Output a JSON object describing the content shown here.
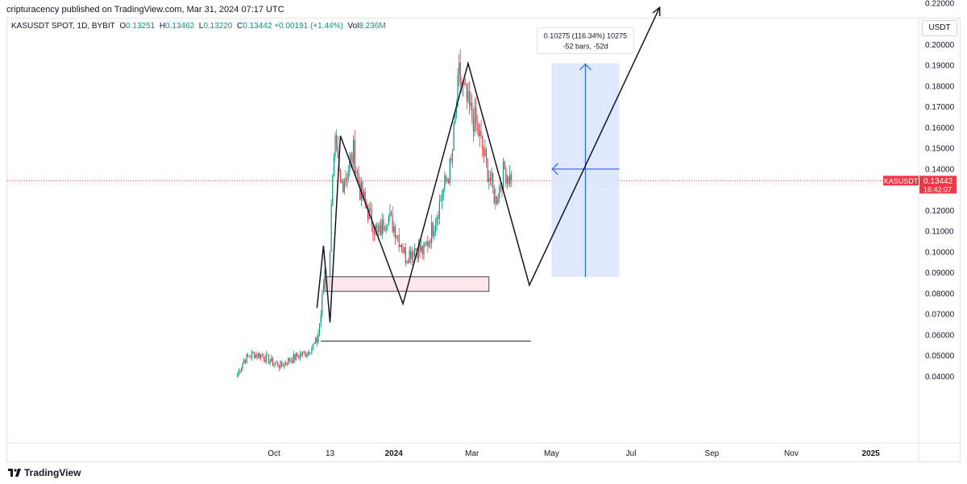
{
  "header": {
    "published_line": "cripturacency published on TradingView.com, Mar 31, 2024 07:17 UTC"
  },
  "legend": {
    "symbol": "KASUSDT SPOT, 1D, BYBIT",
    "open_label": "O",
    "open": "0.13251",
    "high_label": "H",
    "high": "0.13462",
    "low_label": "L",
    "low": "0.13220",
    "close_label": "C",
    "close": "0.13442",
    "change": "+0.00191 (+1.44%)",
    "vol_label": "Vol",
    "vol": "8.236M"
  },
  "currency_button": "USDT",
  "price_tag": {
    "symbol": "KASUSDT",
    "price": "0.13442",
    "countdown": "16:42:07"
  },
  "measure_label": {
    "line1": "0.10275 (116.34%) 10275",
    "line2": "-52 bars, -52d"
  },
  "footer": {
    "brand": "TradingView"
  },
  "colors": {
    "up": "#089981",
    "down": "#f23645",
    "zone_fill": "#fce4e6",
    "zone_border": "#131722",
    "measure_fill": "#dbe5fc",
    "measure_line": "#2962ff",
    "drawing": "#131722"
  },
  "chart_data": {
    "type": "candlestick",
    "title": "KASUSDT SPOT, 1D, BYBIT",
    "y_axis": {
      "ticks": [
        "0.04000",
        "0.05000",
        "0.06000",
        "0.07000",
        "0.08000",
        "0.09000",
        "0.10000",
        "0.11000",
        "0.12000",
        "0.13000",
        "0.14000",
        "0.15000",
        "0.16000",
        "0.17000",
        "0.18000",
        "0.19000",
        "0.20000",
        "0.21000",
        "0.22000"
      ],
      "range": [
        0.035,
        0.225
      ]
    },
    "x_axis": {
      "ticks": [
        "Oct",
        "13",
        "2024",
        "Mar",
        "May",
        "Jul",
        "Sep",
        "Nov",
        "2025"
      ]
    },
    "last_price": 0.13442,
    "approx_close_path": [
      [
        "2023-09-03",
        0.041
      ],
      [
        "2023-09-08",
        0.048
      ],
      [
        "2023-09-15",
        0.051
      ],
      [
        "2023-09-22",
        0.05
      ],
      [
        "2023-09-29",
        0.047
      ],
      [
        "2023-10-06",
        0.045
      ],
      [
        "2023-10-13",
        0.048
      ],
      [
        "2023-10-20",
        0.05
      ],
      [
        "2023-10-27",
        0.052
      ],
      [
        "2023-11-03",
        0.057
      ],
      [
        "2023-11-06",
        0.07
      ],
      [
        "2023-11-09",
        0.092
      ],
      [
        "2023-11-12",
        0.082
      ],
      [
        "2023-11-14",
        0.125
      ],
      [
        "2023-11-17",
        0.15
      ],
      [
        "2023-11-21",
        0.132
      ],
      [
        "2023-11-27",
        0.14
      ],
      [
        "2023-12-01",
        0.148
      ],
      [
        "2023-12-06",
        0.13
      ],
      [
        "2023-12-13",
        0.118
      ],
      [
        "2023-12-20",
        0.108
      ],
      [
        "2023-12-27",
        0.118
      ],
      [
        "2024-01-03",
        0.11
      ],
      [
        "2024-01-10",
        0.098
      ],
      [
        "2024-01-17",
        0.102
      ],
      [
        "2024-01-24",
        0.1
      ],
      [
        "2024-01-31",
        0.112
      ],
      [
        "2024-02-07",
        0.128
      ],
      [
        "2024-02-14",
        0.142
      ],
      [
        "2024-02-20",
        0.185
      ],
      [
        "2024-02-27",
        0.17
      ],
      [
        "2024-03-05",
        0.16
      ],
      [
        "2024-03-12",
        0.142
      ],
      [
        "2024-03-19",
        0.125
      ],
      [
        "2024-03-26",
        0.14
      ],
      [
        "2024-03-31",
        0.13442
      ]
    ],
    "zones": [
      {
        "type": "rectangle",
        "from": "2023-11-09",
        "to": "2024-03-14",
        "y_range": [
          0.081,
          0.088
        ]
      },
      {
        "type": "horizontal_line",
        "from": "2023-11-06",
        "to": "2024-04-15",
        "y": 0.057
      }
    ],
    "drawing_path": [
      [
        "2023-11-03",
        0.073
      ],
      [
        "2023-11-08",
        0.103
      ],
      [
        "2023-11-13",
        0.066
      ],
      [
        "2023-11-21",
        0.156
      ],
      [
        "2024-01-08",
        0.075
      ],
      [
        "2024-02-27",
        0.191
      ],
      [
        "2024-04-14",
        0.084
      ],
      [
        "2024-07-23",
        0.218
      ]
    ],
    "projection_measure": {
      "from": "2024-05-01",
      "to": "2024-06-22",
      "y_range": [
        0.088,
        0.191
      ],
      "change": "0.10275 (116.34%)",
      "bars": "-52 bars, -52d"
    }
  }
}
